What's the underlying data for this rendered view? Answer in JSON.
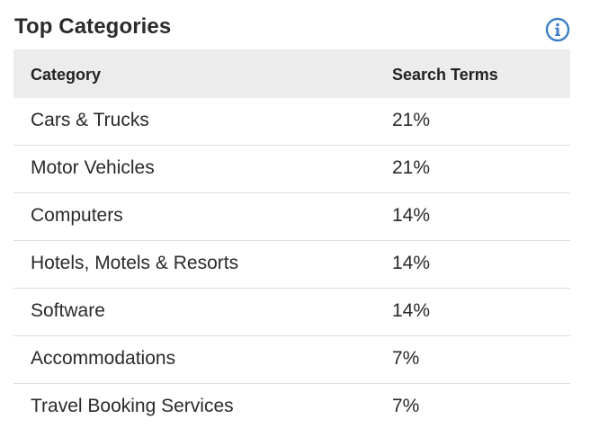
{
  "header": {
    "title": "Top Categories",
    "info_icon": "info-circle-icon",
    "accent_color": "#3d7fc6"
  },
  "table": {
    "columns": [
      "Category",
      "Search Terms"
    ],
    "rows": [
      {
        "category": "Cars & Trucks",
        "search_terms": "21%"
      },
      {
        "category": "Motor Vehicles",
        "search_terms": "21%"
      },
      {
        "category": "Computers",
        "search_terms": "14%"
      },
      {
        "category": "Hotels, Motels & Resorts",
        "search_terms": "14%"
      },
      {
        "category": "Software",
        "search_terms": "14%"
      },
      {
        "category": "Accommodations",
        "search_terms": "7%"
      },
      {
        "category": "Travel Booking Services",
        "search_terms": "7%"
      }
    ]
  }
}
